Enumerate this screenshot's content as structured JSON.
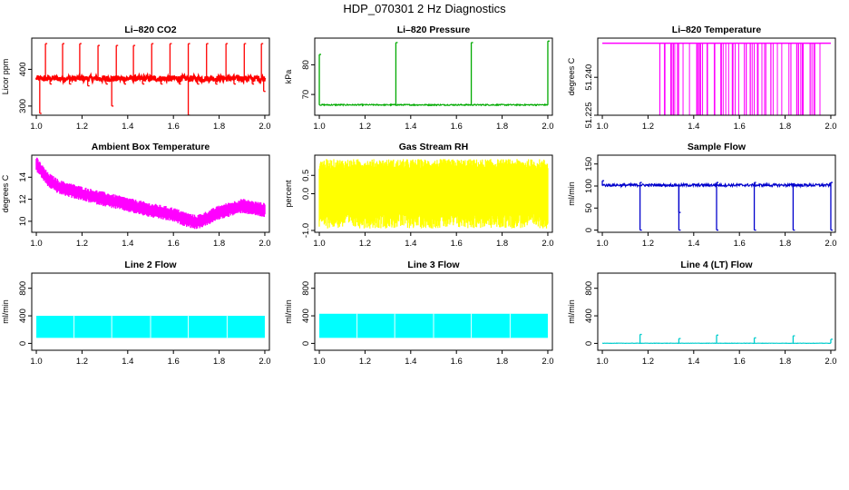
{
  "figure": {
    "title": "HDP_070301 2 Hz Diagnostics"
  },
  "chart_data": [
    {
      "id": "co2",
      "type": "line",
      "title": "Li–820 CO2",
      "ylabel": "Licor ppm",
      "color": "#ff0000",
      "xlim": [
        0.98,
        2.02
      ],
      "ylim": [
        275,
        485
      ],
      "xticks": [
        "1.0",
        "1.2",
        "1.4",
        "1.6",
        "1.8",
        "2.0"
      ],
      "yticks": [
        "300",
        "400"
      ],
      "baseline": 375,
      "noise": 8,
      "spikes": [
        [
          1.015,
          280
        ],
        [
          1.04,
          470
        ],
        [
          1.06,
          360
        ],
        [
          1.115,
          470
        ],
        [
          1.145,
          360
        ],
        [
          1.19,
          470
        ],
        [
          1.225,
          355
        ],
        [
          1.27,
          465
        ],
        [
          1.305,
          360
        ],
        [
          1.33,
          300
        ],
        [
          1.35,
          465
        ],
        [
          1.385,
          360
        ],
        [
          1.425,
          465
        ],
        [
          1.465,
          360
        ],
        [
          1.505,
          470
        ],
        [
          1.545,
          360
        ],
        [
          1.585,
          470
        ],
        [
          1.625,
          360
        ],
        [
          1.665,
          275
        ],
        [
          1.665,
          470
        ],
        [
          1.705,
          360
        ],
        [
          1.745,
          470
        ],
        [
          1.785,
          360
        ],
        [
          1.83,
          470
        ],
        [
          1.865,
          360
        ],
        [
          1.91,
          470
        ],
        [
          1.945,
          360
        ],
        [
          1.985,
          470
        ],
        [
          1.995,
          340
        ]
      ]
    },
    {
      "id": "pressure",
      "type": "line",
      "title": "Li–820 Pressure",
      "ylabel": "kPa",
      "color": "#00aa00",
      "xlim": [
        0.98,
        2.02
      ],
      "ylim": [
        63,
        89
      ],
      "xticks": [
        "1.0",
        "1.2",
        "1.4",
        "1.6",
        "1.8",
        "2.0"
      ],
      "yticks": [
        "70",
        "80"
      ],
      "baseline": 66.5,
      "noise": 0.2,
      "spikes": [
        [
          1.0,
          83.5
        ],
        [
          1.335,
          87.5
        ],
        [
          1.665,
          87.5
        ],
        [
          2.0,
          88
        ]
      ]
    },
    {
      "id": "temperature",
      "type": "line",
      "title": "Li–820 Temperature",
      "ylabel": "degrees C",
      "color": "#ff00ff",
      "xlim": [
        0.98,
        2.02
      ],
      "ylim": [
        51.225,
        51.2555
      ],
      "xticks": [
        "1.0",
        "1.2",
        "1.4",
        "1.6",
        "1.8",
        "2.0"
      ],
      "yticks": [
        "51.225",
        "51.240"
      ],
      "baseline": 51.2535,
      "noise": 0.0002,
      "drops_min": 51.225,
      "drops_start": 1.25,
      "drops_end": 1.98,
      "drops_count": 70
    },
    {
      "id": "ambient",
      "type": "area",
      "title": "Ambient Box Temperature",
      "ylabel": "degrees C",
      "color": "#ff00ff",
      "xlim": [
        0.98,
        2.02
      ],
      "ylim": [
        9,
        16
      ],
      "xticks": [
        "1.0",
        "1.2",
        "1.4",
        "1.6",
        "1.8",
        "2.0"
      ],
      "yticks": [
        "10",
        "12",
        "14"
      ],
      "x": [
        1.0,
        1.05,
        1.1,
        1.2,
        1.3,
        1.4,
        1.5,
        1.6,
        1.65,
        1.7,
        1.75,
        1.8,
        1.9,
        2.0
      ],
      "values": [
        15.2,
        13.8,
        13.1,
        12.5,
        12.0,
        11.5,
        11.0,
        10.6,
        10.2,
        9.9,
        10.3,
        10.8,
        11.4,
        11.0
      ],
      "band": 0.6
    },
    {
      "id": "rh",
      "type": "area",
      "title": "Gas Stream RH",
      "ylabel": "percent",
      "color": "#ffff00",
      "xlim": [
        0.98,
        2.02
      ],
      "ylim": [
        -1.05,
        1.05
      ],
      "xticks": [
        "1.0",
        "1.2",
        "1.4",
        "1.6",
        "1.8",
        "2.0"
      ],
      "yticks": [
        "-1.0",
        "0.0",
        "0.5"
      ],
      "center": 0.0,
      "half_range": 0.9
    },
    {
      "id": "sample",
      "type": "line",
      "title": "Sample Flow",
      "ylabel": "ml/min",
      "color": "#0000cc",
      "xlim": [
        0.98,
        2.02
      ],
      "ylim": [
        -5,
        170
      ],
      "xticks": [
        "1.0",
        "1.2",
        "1.4",
        "1.6",
        "1.8",
        "2.0"
      ],
      "yticks": [
        "0",
        "50",
        "100",
        "150"
      ],
      "baseline": 102,
      "noise": 3,
      "spikes": [
        [
          1.0,
          112
        ],
        [
          1.165,
          0
        ],
        [
          1.165,
          108
        ],
        [
          1.335,
          0
        ],
        [
          1.335,
          40
        ],
        [
          1.5,
          0
        ],
        [
          1.5,
          108
        ],
        [
          1.665,
          0
        ],
        [
          1.665,
          108
        ],
        [
          1.835,
          0
        ],
        [
          1.835,
          105
        ],
        [
          2.0,
          0
        ],
        [
          2.0,
          108
        ]
      ]
    },
    {
      "id": "line2",
      "type": "area",
      "title": "Line 2 Flow",
      "ylabel": "ml/min",
      "color": "#00ffff",
      "xlim": [
        0.98,
        2.02
      ],
      "ylim": [
        -100,
        1020
      ],
      "xticks": [
        "1.0",
        "1.2",
        "1.4",
        "1.6",
        "1.8",
        "2.0"
      ],
      "yticks": [
        "0",
        "400",
        "800"
      ],
      "low": 80,
      "high": 400,
      "gaps": [
        1.165,
        1.33,
        1.5,
        1.665,
        1.835
      ]
    },
    {
      "id": "line3",
      "type": "area",
      "title": "Line 3 Flow",
      "ylabel": "ml/min",
      "color": "#00ffff",
      "xlim": [
        0.98,
        2.02
      ],
      "ylim": [
        -100,
        1020
      ],
      "xticks": [
        "1.0",
        "1.2",
        "1.4",
        "1.6",
        "1.8",
        "2.0"
      ],
      "yticks": [
        "0",
        "400",
        "800"
      ],
      "low": 80,
      "high": 430,
      "gaps": [
        1.165,
        1.33,
        1.5,
        1.665,
        1.835
      ]
    },
    {
      "id": "line4",
      "type": "line",
      "title": "Line 4 (LT) Flow",
      "ylabel": "ml/min",
      "color": "#00cccc",
      "xlim": [
        0.98,
        2.02
      ],
      "ylim": [
        -100,
        1020
      ],
      "xticks": [
        "1.0",
        "1.2",
        "1.4",
        "1.6",
        "1.8",
        "2.0"
      ],
      "yticks": [
        "0",
        "400",
        "800"
      ],
      "baseline": 2,
      "noise": 2,
      "spikes": [
        [
          1.165,
          130
        ],
        [
          1.335,
          70
        ],
        [
          1.5,
          120
        ],
        [
          1.665,
          80
        ],
        [
          1.835,
          110
        ],
        [
          2.0,
          60
        ]
      ]
    }
  ]
}
